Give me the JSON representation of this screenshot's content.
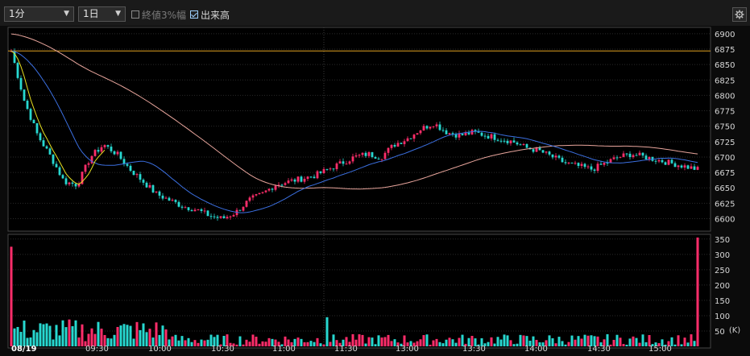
{
  "toolbar": {
    "interval_select": "1分",
    "period_select": "1日",
    "close3pct_label": "終値3%幅",
    "close3pct_checked": false,
    "volume_label": "出来高",
    "volume_checked": true,
    "settings_icon": "gear-icon"
  },
  "colors": {
    "up": "#ff2d6a",
    "down": "#27d8d0",
    "ma_short": "#3b6fe0",
    "ma_long": "#e8a59c",
    "ref_line": "#e0a020",
    "price_line": "#e8e020"
  },
  "chart_data": [
    {
      "type": "candlestick",
      "title": "",
      "y_ticks": [
        "6900",
        "6875",
        "6850",
        "6825",
        "6800",
        "6775",
        "6750",
        "6725",
        "6700",
        "6675",
        "6650",
        "6625",
        "6600"
      ],
      "ylim": [
        6585,
        6905
      ],
      "x_ticks": [
        "08/19",
        "09:30",
        "10:00",
        "10:30",
        "11:00",
        "11:30",
        "13:00",
        "13:30",
        "14:00",
        "14:30",
        "15:00"
      ],
      "reference_line": 6872,
      "series": [
        {
          "anchor_prices": [
            6872,
            6790,
            6735,
            6700,
            6660,
            6655,
            6700,
            6720,
            6705,
            6680,
            6660,
            6640,
            6630,
            6620,
            6615,
            6605,
            6600,
            6610,
            6630,
            6640,
            6655,
            6660,
            6665,
            6670,
            6680,
            6690,
            6700,
            6705,
            6700,
            6720,
            6730,
            6745,
            6755,
            6740,
            6735,
            6740,
            6735,
            6730,
            6725,
            6715,
            6710,
            6700,
            6690,
            6685,
            6680,
            6690,
            6700,
            6705,
            6700,
            6695,
            6690,
            6685,
            6680
          ]
        },
        {
          "name": "",
          "role": "short moving average"
        },
        {
          "name": "",
          "role": "long moving average"
        }
      ],
      "grid": true
    },
    {
      "type": "bar",
      "title": "",
      "y_ticks": [
        "350",
        "300",
        "250",
        "200",
        "150",
        "100",
        "50"
      ],
      "ylim": [
        0,
        360
      ],
      "unit_label": "(K)",
      "first_bar": 325,
      "last_bar": 355,
      "typical_range": [
        5,
        40
      ]
    }
  ]
}
